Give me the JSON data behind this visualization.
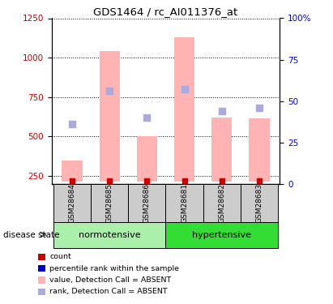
{
  "title": "GDS1464 / rc_AI011376_at",
  "samples": [
    "GSM28684",
    "GSM28685",
    "GSM28686",
    "GSM28681",
    "GSM28682",
    "GSM28683"
  ],
  "groups": [
    {
      "name": "normotensive",
      "indices": [
        0,
        1,
        2
      ],
      "color": "#aaf0aa"
    },
    {
      "name": "hypertensive",
      "indices": [
        3,
        4,
        5
      ],
      "color": "#33dd33"
    }
  ],
  "bar_values": [
    350,
    1040,
    505,
    1130,
    620,
    615
  ],
  "bar_color": "#ffb3b3",
  "rank_dot_values": [
    580,
    790,
    620,
    800,
    660,
    680
  ],
  "rank_dot_color": "#aaaadd",
  "count_values": [
    220,
    220,
    220,
    220,
    220,
    220
  ],
  "count_color": "#cc0000",
  "ylim_left": [
    200,
    1250
  ],
  "ylim_right": [
    0,
    100
  ],
  "yticks_left": [
    250,
    500,
    750,
    1000,
    1250
  ],
  "yticks_right": [
    0,
    25,
    50,
    75,
    100
  ],
  "legend_items": [
    {
      "label": "count",
      "color": "#cc0000"
    },
    {
      "label": "percentile rank within the sample",
      "color": "#0000cc"
    },
    {
      "label": "value, Detection Call = ABSENT",
      "color": "#ffb3b3"
    },
    {
      "label": "rank, Detection Call = ABSENT",
      "color": "#aaaadd"
    }
  ],
  "label_disease_state": "disease state",
  "left_tick_color": "#cc0000",
  "right_tick_color": "#0000cc",
  "sample_box_color": "#cccccc",
  "bar_bottom": 215,
  "figsize": [
    4.11,
    3.75
  ],
  "dpi": 100
}
